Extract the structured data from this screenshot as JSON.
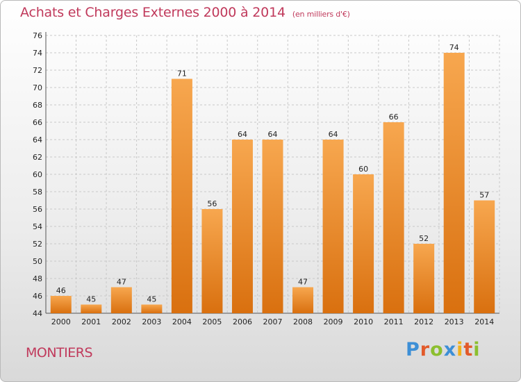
{
  "title": "Achats et Charges Externes 2000 à 2014",
  "unit": "(en milliers d'€)",
  "town": "MONTIERS",
  "logo": {
    "letters": [
      "P",
      "r",
      "o",
      "x",
      "i",
      "t",
      "i"
    ],
    "colors": [
      "#3d8fd6",
      "#e25a2a",
      "#8cbf2f",
      "#3d8fd6",
      "#f2b21b",
      "#e25a2a",
      "#8cbf2f"
    ]
  },
  "chart_data": {
    "type": "bar",
    "categories": [
      "2000",
      "2001",
      "2002",
      "2003",
      "2004",
      "2005",
      "2006",
      "2007",
      "2008",
      "2009",
      "2010",
      "2011",
      "2012",
      "2013",
      "2014"
    ],
    "values": [
      46,
      45,
      47,
      45,
      71,
      56,
      64,
      64,
      47,
      64,
      60,
      66,
      52,
      74,
      57
    ],
    "ylim": [
      44,
      76
    ],
    "yticks": [
      44,
      46,
      48,
      50,
      52,
      54,
      56,
      58,
      60,
      62,
      64,
      66,
      68,
      70,
      72,
      74,
      76
    ],
    "grid": true,
    "bar_color": "#f0902a"
  }
}
